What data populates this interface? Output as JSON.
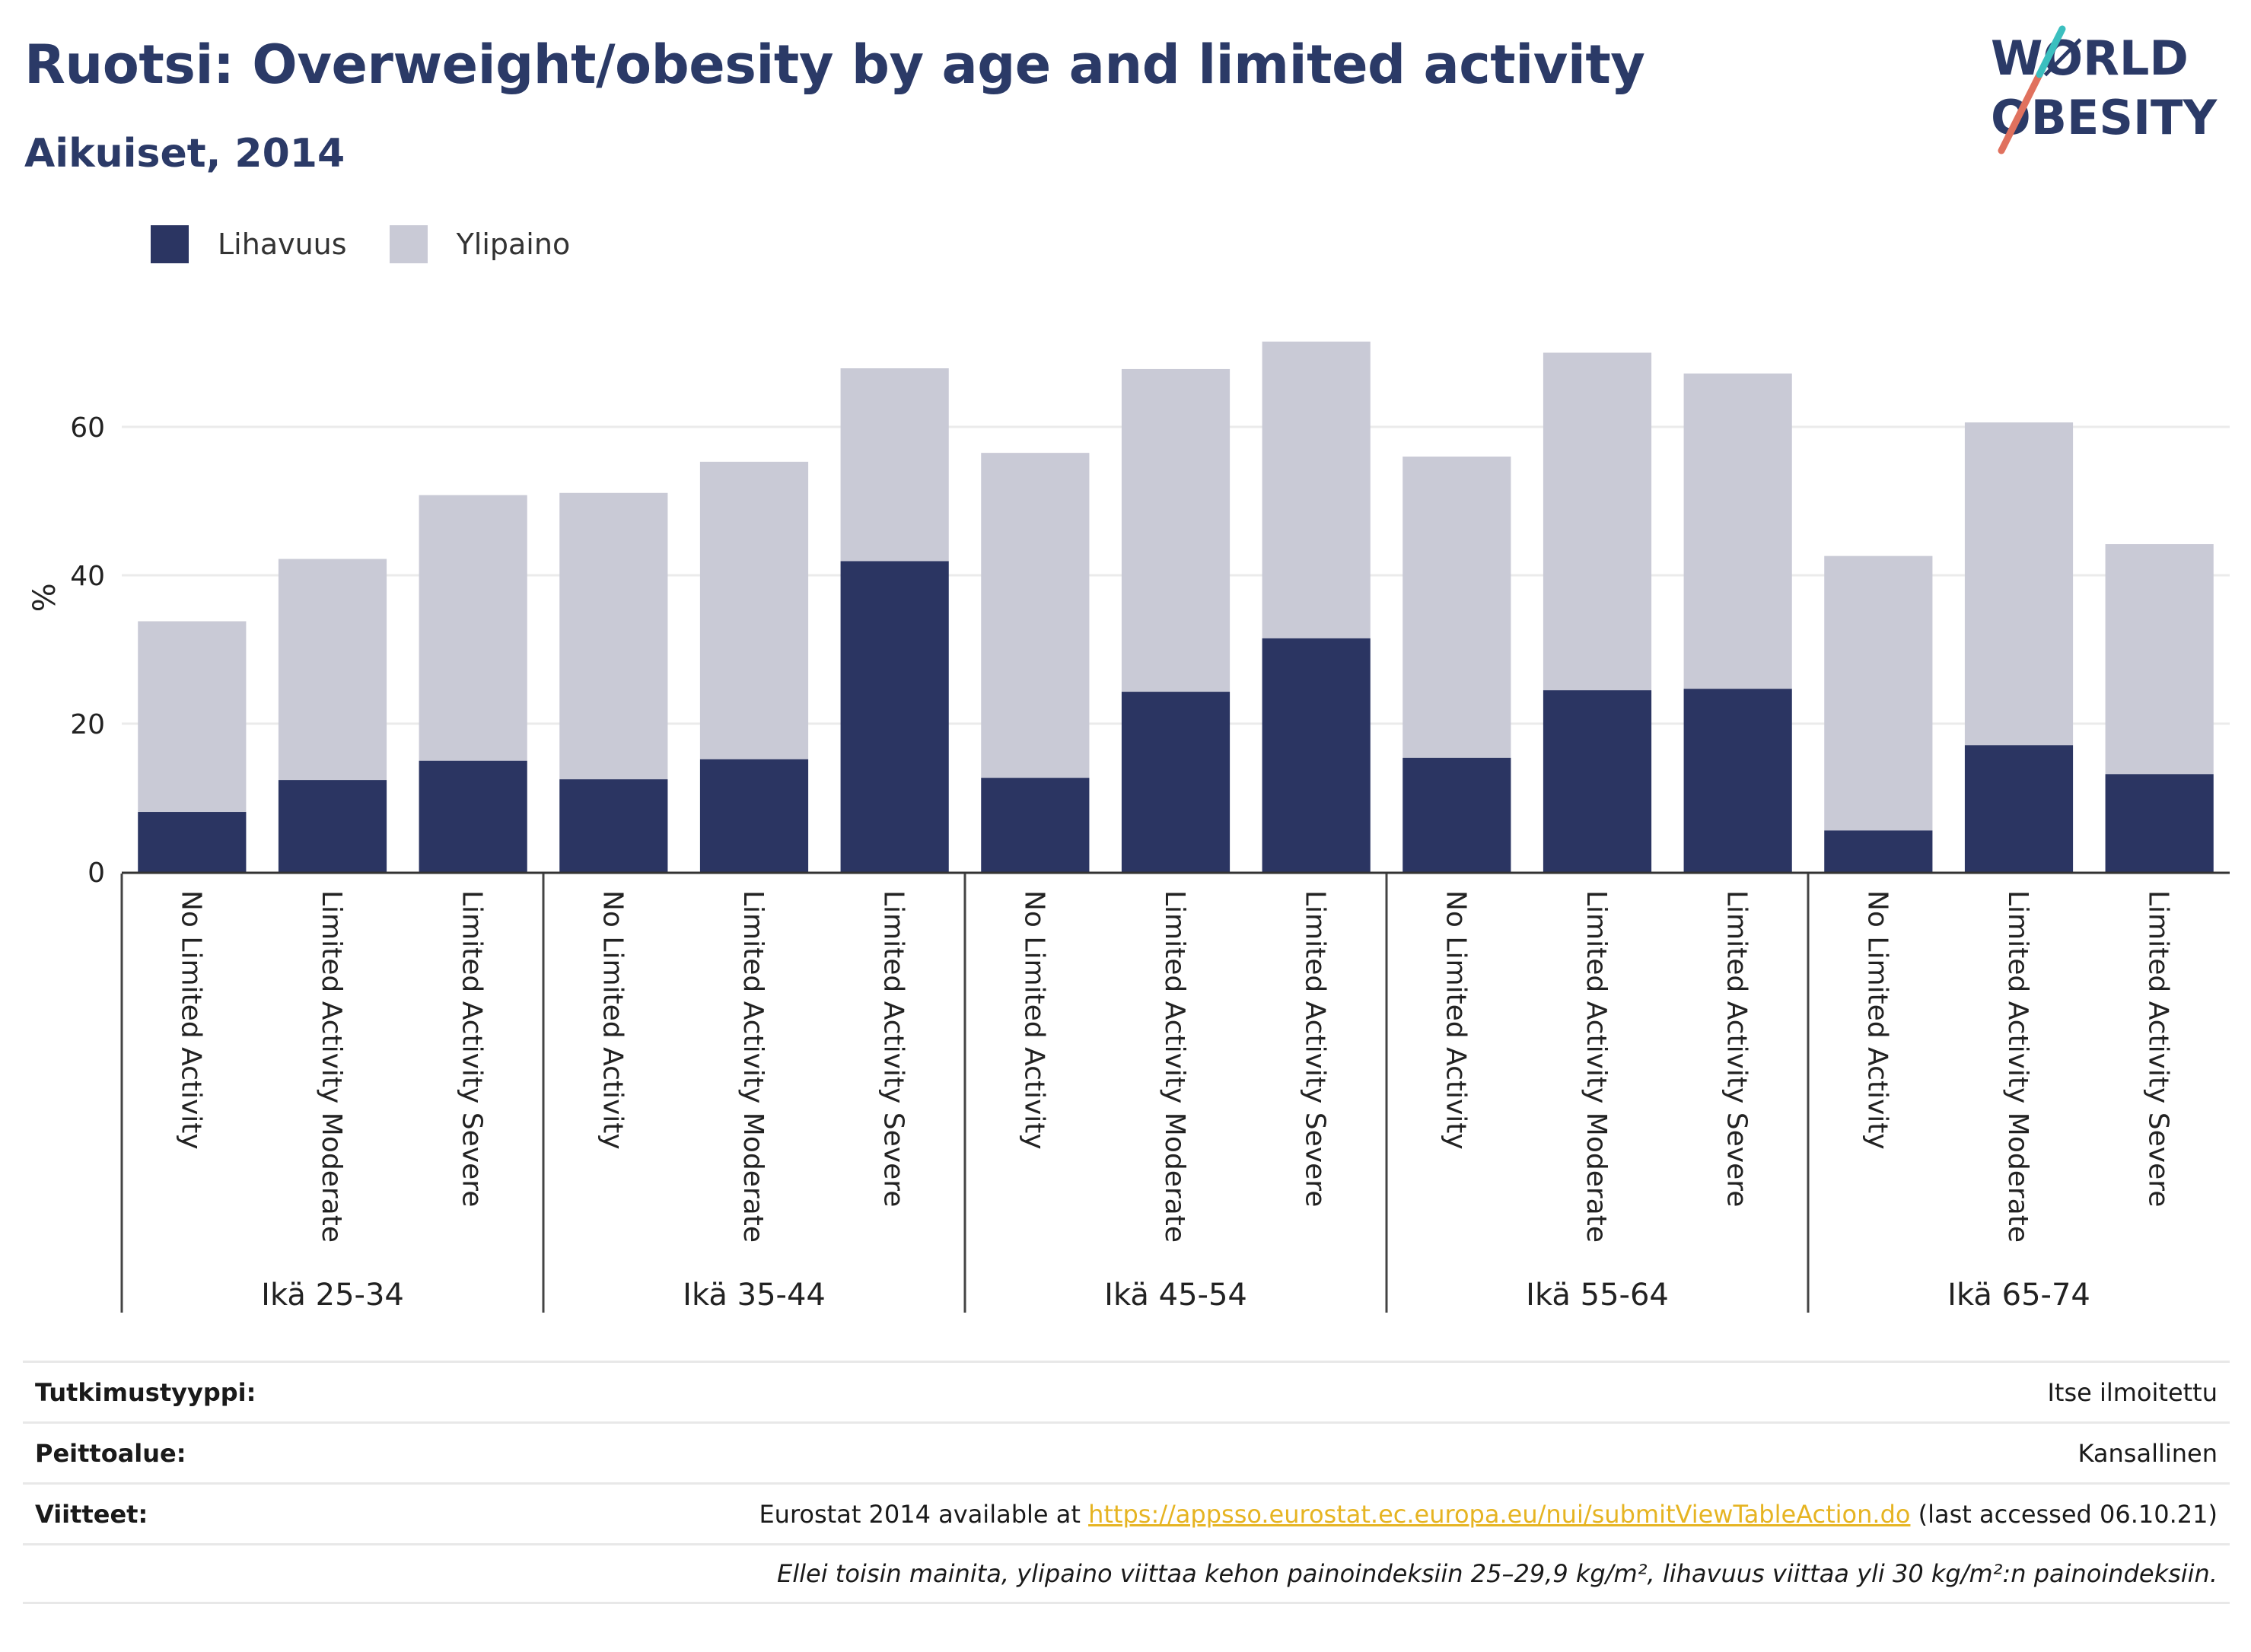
{
  "header": {
    "title": "Ruotsi: Overweight/obesity by age and limited activity",
    "subtitle": "Aikuiset, 2014"
  },
  "logo": {
    "line1": "WØRLD",
    "line2": "OBESITY"
  },
  "legend": [
    {
      "label": "Lihavuus",
      "color": "#2b3562"
    },
    {
      "label": "Ylipaino",
      "color": "#c9cad6"
    }
  ],
  "chart_data": {
    "type": "bar",
    "stacked": true,
    "ylabel": "%",
    "ylim": [
      0,
      75
    ],
    "yticks": [
      0,
      20,
      40,
      60
    ],
    "grid": true,
    "legend_position": "top-left",
    "categories": [
      "No Limited Activity",
      "Limited Activity Moderate",
      "Limited Activity Severe",
      "No Limited Activity",
      "Limited Activity Moderate",
      "Limited Activity Severe",
      "No Limited Activity",
      "Limited Activity Moderate",
      "Limited Activity Severe",
      "No Limited Activity",
      "Limited Activity Moderate",
      "Limited Activity Severe",
      "No Limited Activity",
      "Limited Activity Moderate",
      "Limited Activity Severe"
    ],
    "groups": [
      "Ikä 25-34",
      "Ikä 35-44",
      "Ikä 45-54",
      "Ikä 55-64",
      "Ikä 65-74"
    ],
    "series": [
      {
        "name": "Lihavuus",
        "color": "#2b3562",
        "values": [
          8.1,
          12.4,
          15.0,
          12.5,
          15.2,
          41.9,
          12.7,
          24.3,
          31.5,
          15.4,
          24.5,
          24.7,
          5.6,
          17.1,
          13.2
        ]
      },
      {
        "name": "Ylipaino",
        "color": "#c9cad6",
        "values": [
          25.7,
          29.8,
          35.8,
          38.6,
          40.1,
          26.0,
          43.8,
          43.5,
          40.0,
          40.6,
          45.5,
          42.5,
          37.0,
          43.5,
          31.0
        ]
      }
    ]
  },
  "footer": {
    "rows": [
      {
        "label": "Tutkimustyyppi:",
        "value": "Itse ilmoitettu"
      },
      {
        "label": "Peittoalue:",
        "value": "Kansallinen"
      }
    ],
    "ref_label": "Viitteet:",
    "ref_prefix": "Eurostat 2014 available at ",
    "ref_link": "https://appsso.eurostat.ec.europa.eu/nui/submitViewTableAction.do",
    "ref_suffix": " (last accessed 06.10.21)",
    "note": "Ellei toisin mainita, ylipaino viittaa kehon painoindeksiin 25–29,9 kg/m², lihavuus viittaa yli 30 kg/m²:n painoindeksiin."
  }
}
